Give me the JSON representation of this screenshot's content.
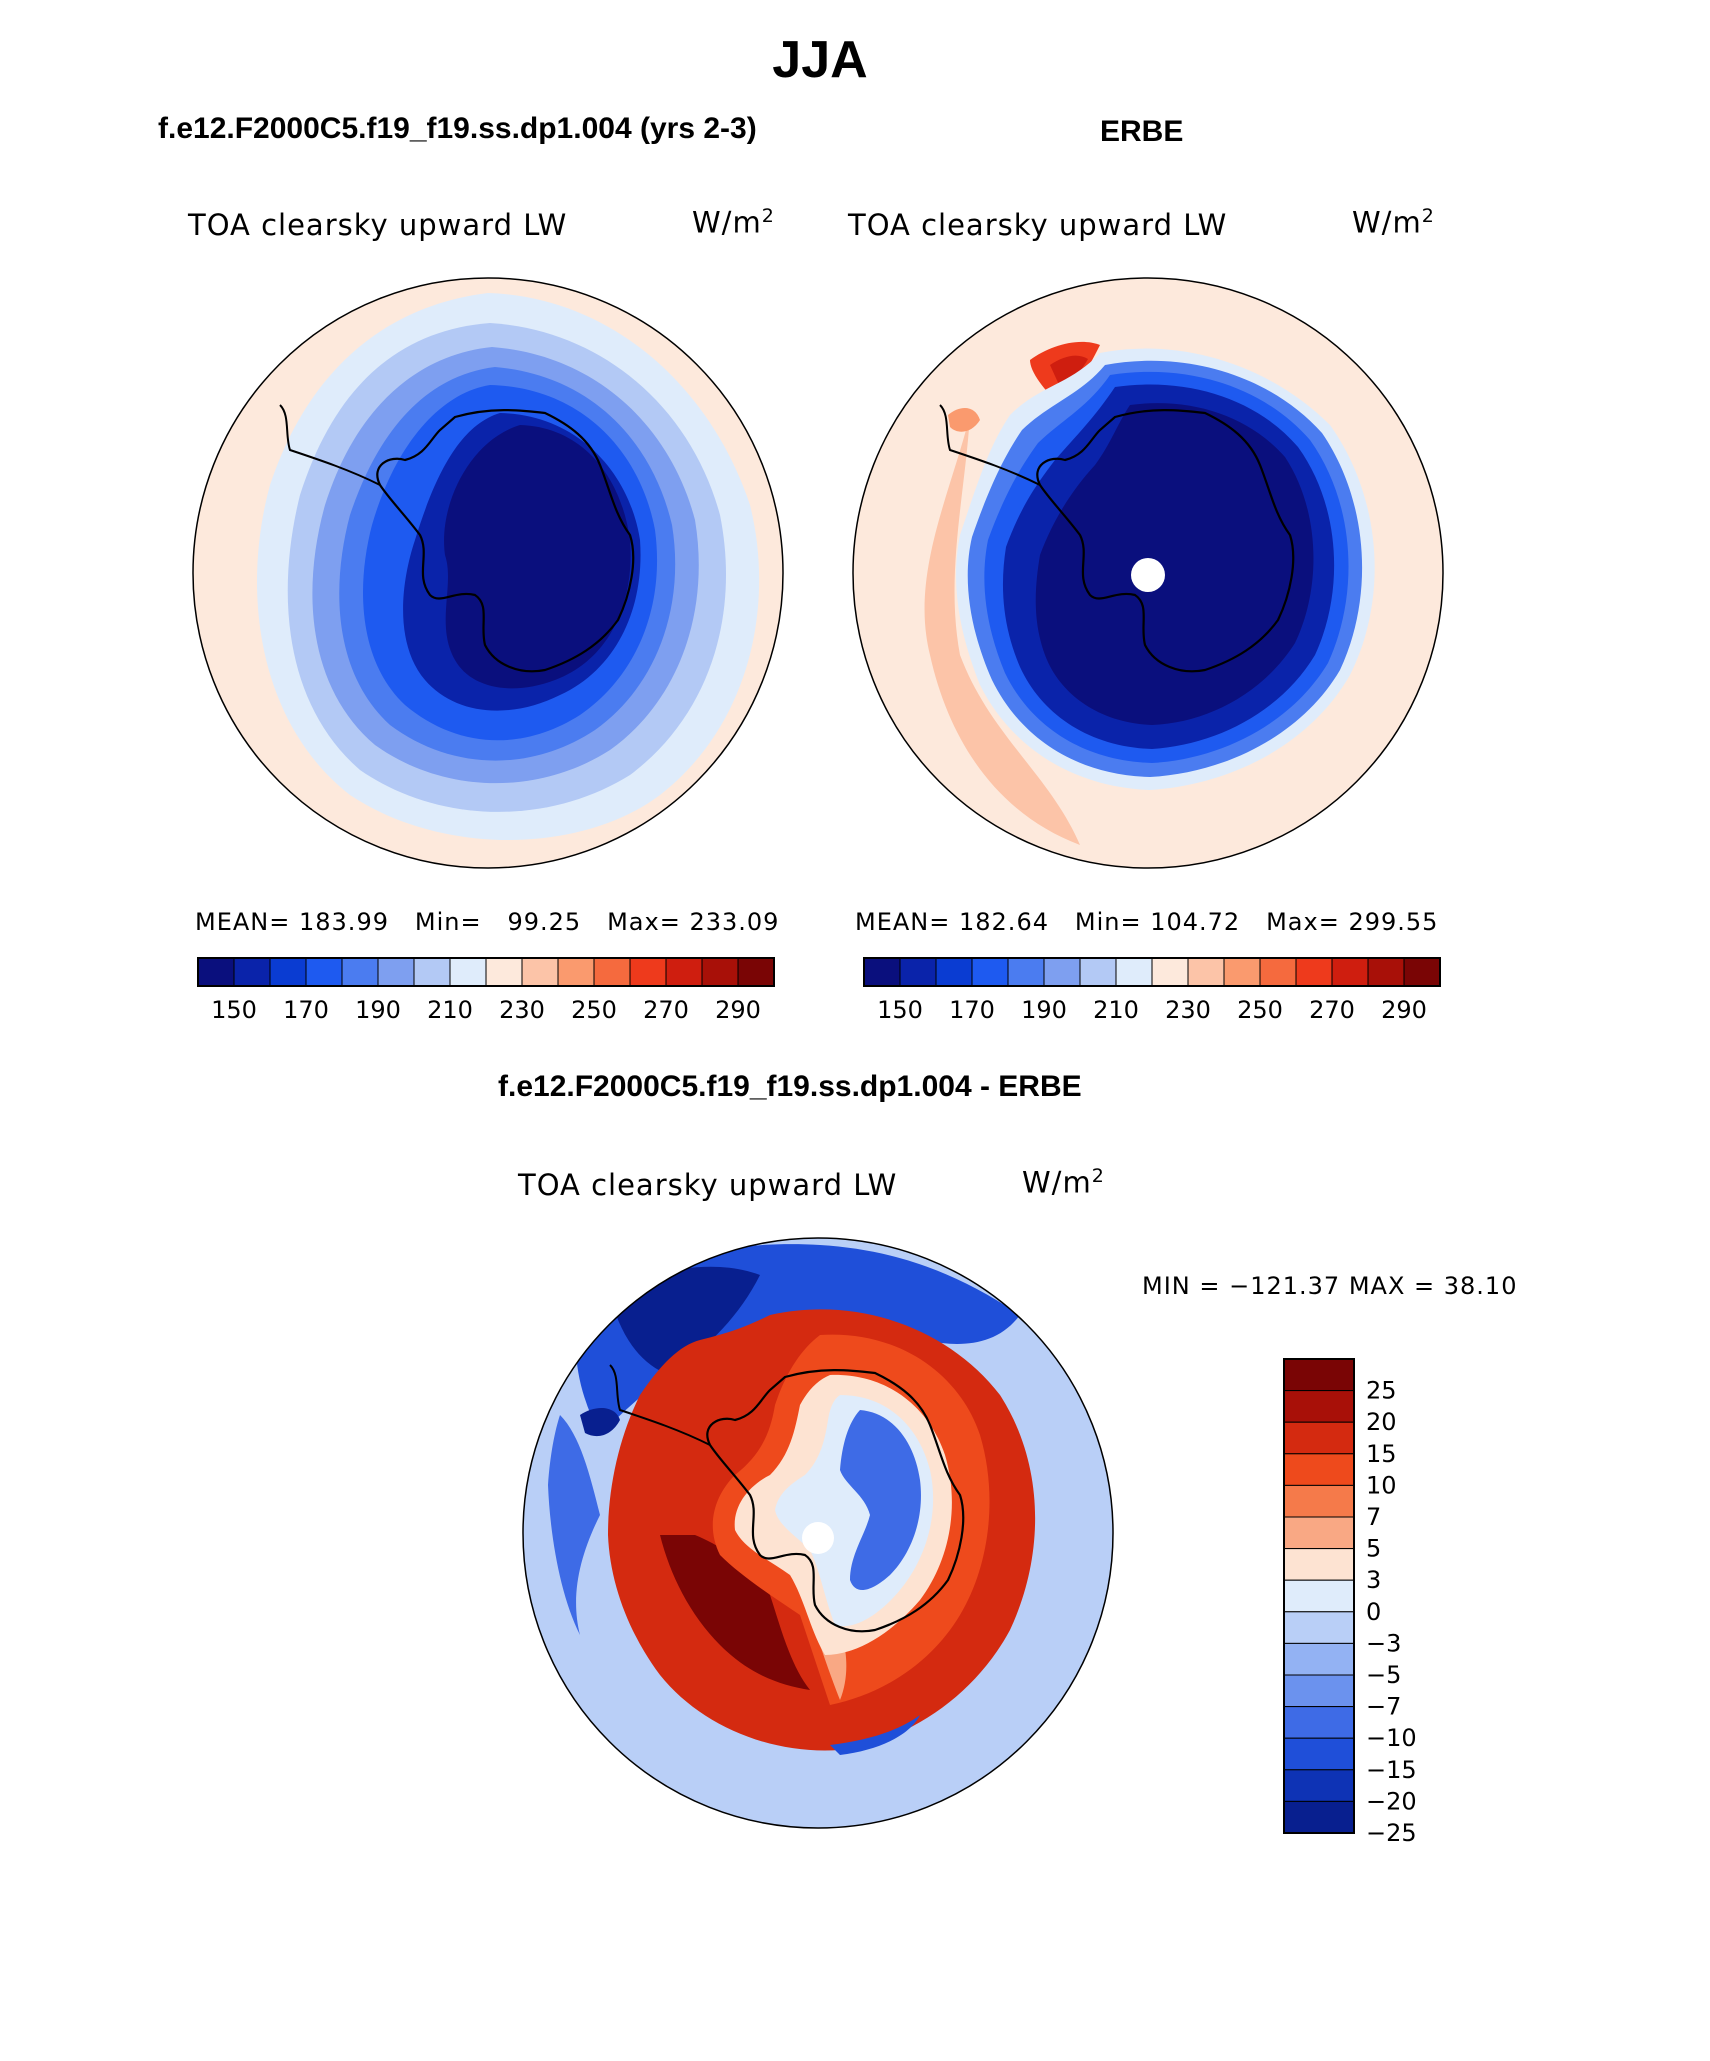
{
  "title": "JJA",
  "panels": {
    "model": {
      "title": "f.e12.F2000C5.f19_f19.ss.dp1.004 (yrs 2-3)",
      "variable": "TOA clearsky upward LW",
      "units_base": "W/m",
      "units_sup": "2",
      "mean_label": "MEAN=",
      "mean": "183.99",
      "min_label": "Min=",
      "min": "99.25",
      "max_label": "Max=",
      "max": "233.09"
    },
    "obs": {
      "title": "ERBE",
      "variable": "TOA clearsky upward LW",
      "units_base": "W/m",
      "units_sup": "2",
      "mean_label": "MEAN=",
      "mean": "182.64",
      "min_label": "Min=",
      "min": "104.72",
      "max_label": "Max=",
      "max": "299.55"
    },
    "diff": {
      "title": "f.e12.F2000C5.f19_f19.ss.dp1.004 - ERBE",
      "variable": "TOA clearsky upward LW",
      "units_base": "W/m",
      "units_sup": "2",
      "minmax_text": "MIN = −121.37 MAX =   38.10"
    }
  },
  "colorbar_abs": {
    "colors": [
      "#0a0f7d",
      "#0a23aa",
      "#0a3cd2",
      "#1e5af0",
      "#4b7cf0",
      "#7e9ff0",
      "#b3c9f5",
      "#dfecfb",
      "#fde9dc",
      "#fcc4a8",
      "#fa9a6e",
      "#f56a3e",
      "#ee3a1c",
      "#cf1e0f",
      "#a81008",
      "#7a0505"
    ],
    "tick_labels": [
      "150",
      "170",
      "190",
      "210",
      "230",
      "250",
      "270",
      "290"
    ]
  },
  "colorbar_diff": {
    "colors": [
      "#7a0505",
      "#a81008",
      "#d42a10",
      "#ee4a1c",
      "#f57a4a",
      "#f9a884",
      "#fde3d2",
      "#dfecfb",
      "#b9cff7",
      "#93b2f3",
      "#6b92ee",
      "#3e6be6",
      "#1f4fd9",
      "#0e33b5",
      "#081f8f"
    ],
    "tick_labels": [
      "25",
      "20",
      "15",
      "10",
      "7",
      "5",
      "3",
      "0",
      "−3",
      "−5",
      "−7",
      "−10",
      "−15",
      "−20",
      "−25"
    ]
  }
}
